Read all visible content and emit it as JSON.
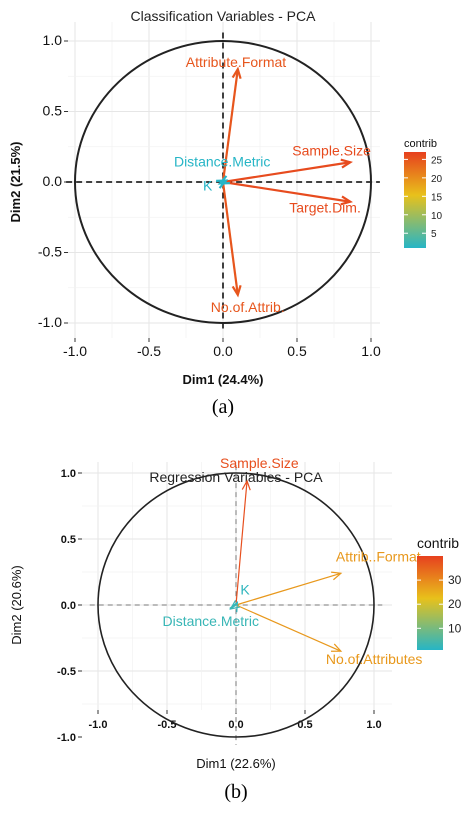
{
  "chart_data": [
    {
      "type": "scatter",
      "subtype": "pca-variable-correlation-circle",
      "title": "Classification Variables - PCA",
      "xlabel": "Dim1 (24.4%)",
      "ylabel": "Dim2 (21.5%)",
      "caption": "(a)",
      "xlim": [
        -1.0,
        1.0
      ],
      "ylim": [
        -1.0,
        1.0
      ],
      "xticks": [
        "-1.0",
        "-0.5",
        "0.0",
        "0.5",
        "1.0"
      ],
      "yticks": [
        "-1.0",
        "-0.5",
        "0.0",
        "0.5",
        "1.0"
      ],
      "grid": true,
      "legend": {
        "title": "contrib",
        "position": "right",
        "ticks": [
          "5",
          "10",
          "15",
          "20",
          "25"
        ],
        "tick_values": [
          5,
          10,
          15,
          20,
          25
        ],
        "range": [
          1,
          27
        ],
        "colors": [
          "#26b5c6",
          "#e8c11b",
          "#e7401e"
        ]
      },
      "points": [
        {
          "label": "Attribute.Format",
          "x": 0.1,
          "y": 0.8,
          "contrib": 25
        },
        {
          "label": "Sample.Size",
          "x": 0.86,
          "y": 0.14,
          "contrib": 26
        },
        {
          "label": "Target.Dim.",
          "x": 0.86,
          "y": -0.14,
          "contrib": 26
        },
        {
          "label": "No.of.Attrib.",
          "x": 0.1,
          "y": -0.8,
          "contrib": 25
        },
        {
          "label": "Distance.Metric",
          "x": 0.02,
          "y": 0.01,
          "contrib": 1
        },
        {
          "label": "K",
          "x": -0.02,
          "y": -0.01,
          "contrib": 1
        }
      ]
    },
    {
      "type": "scatter",
      "subtype": "pca-variable-correlation-circle",
      "title": "Regression Variables - PCA",
      "xlabel": "Dim1 (22.6%)",
      "ylabel": "Dim2 (20.6%)",
      "caption": "(b)",
      "xlim": [
        -1.0,
        1.0
      ],
      "ylim": [
        -1.0,
        1.0
      ],
      "xticks": [
        "-1.0",
        "-0.5",
        "0.0",
        "0.5",
        "1.0"
      ],
      "yticks": [
        "-1.0",
        "-0.5",
        "0.0",
        "0.5",
        "1.0"
      ],
      "grid": true,
      "legend": {
        "title": "contrib",
        "position": "right",
        "ticks": [
          "10",
          "20",
          "30"
        ],
        "tick_values": [
          10,
          20,
          30
        ],
        "range": [
          1,
          40
        ],
        "colors": [
          "#26b5c6",
          "#e8c11b",
          "#e7401e"
        ]
      },
      "points": [
        {
          "label": "Sample.Size",
          "x": 0.08,
          "y": 0.94,
          "contrib": 38
        },
        {
          "label": "Attrib..Format",
          "x": 0.76,
          "y": 0.24,
          "contrib": 28
        },
        {
          "label": "No.of.Attributes",
          "x": 0.76,
          "y": -0.35,
          "contrib": 28
        },
        {
          "label": "K",
          "x": 0.01,
          "y": 0.02,
          "contrib": 2
        },
        {
          "label": "Distance.Metric",
          "x": -0.04,
          "y": -0.03,
          "contrib": 3
        }
      ]
    }
  ]
}
